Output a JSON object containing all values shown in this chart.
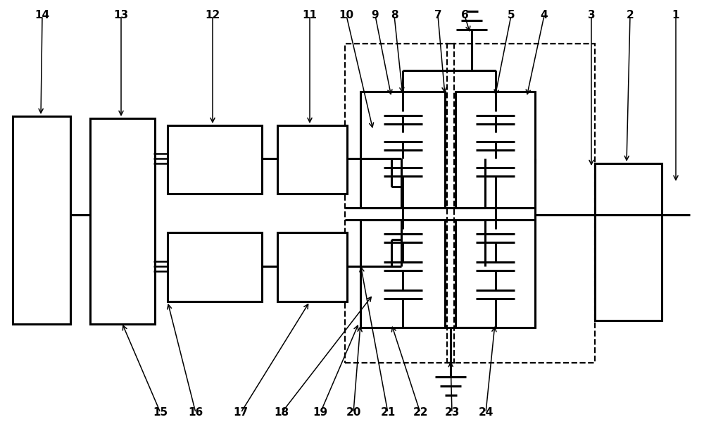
{
  "fig_w": 10.0,
  "fig_h": 6.09,
  "dpi": 100,
  "lw": 2.2,
  "lw_thin": 1.5,
  "lw_dash": 1.6,
  "fs_label": 11
}
